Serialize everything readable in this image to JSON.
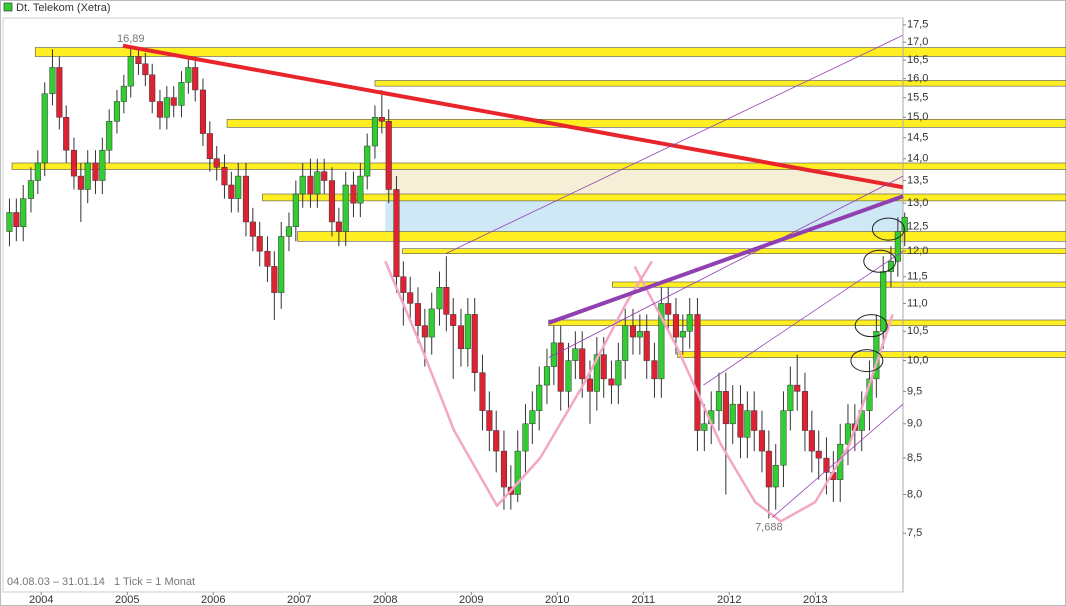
{
  "chart_data": {
    "type": "candlestick",
    "title": "Dt. Telekom (Xetra)",
    "date_range": "04.08.03 – 31.01.14",
    "tick_note": "1 Tick = 1 Monat",
    "log_scale": true,
    "up_color": "#33cc33",
    "down_color": "#dd2233",
    "x": [
      2003.63,
      2003.71,
      2003.79,
      2003.88,
      2003.96,
      2004.04,
      2004.13,
      2004.21,
      2004.29,
      2004.38,
      2004.46,
      2004.54,
      2004.63,
      2004.71,
      2004.79,
      2004.88,
      2004.96,
      2005.04,
      2005.13,
      2005.21,
      2005.29,
      2005.38,
      2005.46,
      2005.54,
      2005.63,
      2005.71,
      2005.79,
      2005.88,
      2005.96,
      2006.04,
      2006.13,
      2006.21,
      2006.29,
      2006.38,
      2006.46,
      2006.54,
      2006.63,
      2006.71,
      2006.79,
      2006.88,
      2006.96,
      2007.04,
      2007.13,
      2007.21,
      2007.29,
      2007.38,
      2007.46,
      2007.54,
      2007.63,
      2007.71,
      2007.79,
      2007.88,
      2007.96,
      2008.04,
      2008.13,
      2008.21,
      2008.29,
      2008.38,
      2008.46,
      2008.54,
      2008.63,
      2008.71,
      2008.79,
      2008.88,
      2008.96,
      2009.04,
      2009.13,
      2009.21,
      2009.29,
      2009.38,
      2009.46,
      2009.54,
      2009.63,
      2009.71,
      2009.79,
      2009.88,
      2009.96,
      2010.04,
      2010.13,
      2010.21,
      2010.29,
      2010.38,
      2010.46,
      2010.54,
      2010.63,
      2010.71,
      2010.79,
      2010.88,
      2010.96,
      2011.04,
      2011.13,
      2011.21,
      2011.29,
      2011.38,
      2011.46,
      2011.54,
      2011.63,
      2011.71,
      2011.79,
      2011.88,
      2011.96,
      2012.04,
      2012.13,
      2012.21,
      2012.29,
      2012.38,
      2012.46,
      2012.54,
      2012.63,
      2012.71,
      2012.79,
      2012.88,
      2012.96,
      2013.04,
      2013.13,
      2013.21,
      2013.29,
      2013.38,
      2013.46,
      2013.54,
      2013.63,
      2013.71,
      2013.79,
      2013.88,
      2013.96,
      2014.04
    ],
    "open": [
      12.4,
      12.8,
      12.5,
      13.1,
      13.5,
      13.9,
      15.6,
      16.3,
      15.0,
      14.2,
      13.6,
      13.3,
      13.9,
      13.5,
      14.2,
      14.9,
      15.4,
      15.8,
      16.6,
      16.4,
      16.1,
      15.4,
      15.0,
      15.5,
      15.3,
      15.9,
      16.3,
      15.7,
      14.6,
      14.0,
      13.8,
      13.4,
      13.1,
      13.6,
      12.6,
      12.3,
      12.0,
      11.7,
      11.2,
      12.3,
      12.5,
      13.2,
      13.6,
      13.2,
      13.7,
      13.5,
      12.6,
      12.4,
      13.4,
      13.0,
      13.6,
      14.3,
      15.0,
      14.9,
      13.3,
      11.5,
      11.2,
      11.0,
      10.6,
      10.4,
      10.9,
      11.3,
      10.8,
      10.6,
      10.2,
      10.8,
      9.8,
      9.2,
      8.9,
      8.6,
      8.1,
      8.0,
      8.6,
      9.0,
      9.2,
      9.6,
      9.9,
      10.3,
      9.5,
      10.0,
      10.2,
      9.7,
      9.5,
      10.1,
      9.7,
      9.6,
      10.0,
      10.6,
      10.4,
      10.5,
      10.0,
      9.7,
      11.0,
      10.8,
      10.4,
      10.5,
      10.8,
      8.9,
      9.0,
      9.2,
      9.5,
      9.0,
      9.3,
      8.8,
      9.2,
      8.9,
      8.6,
      8.1,
      8.4,
      9.2,
      9.6,
      9.5,
      8.9,
      8.6,
      8.5,
      8.3,
      8.2,
      8.7,
      9.0,
      8.9,
      9.2,
      9.7,
      10.5,
      11.6,
      11.8,
      12.4
    ],
    "high": [
      13.1,
      13.1,
      13.4,
      13.8,
      14.2,
      15.9,
      16.8,
      16.6,
      15.3,
      14.5,
      13.9,
      14.2,
      14.2,
      14.5,
      15.2,
      15.7,
      16.1,
      16.89,
      16.8,
      16.7,
      16.4,
      15.7,
      15.8,
      15.8,
      16.2,
      16.6,
      16.6,
      16.0,
      14.9,
      14.3,
      14.1,
      13.7,
      13.9,
      13.9,
      12.9,
      12.6,
      12.3,
      12.0,
      12.6,
      12.8,
      13.5,
      13.9,
      14.0,
      14.0,
      14.0,
      13.8,
      12.9,
      13.7,
      13.7,
      13.9,
      14.6,
      15.3,
      15.7,
      15.2,
      13.6,
      11.8,
      11.5,
      11.3,
      10.9,
      11.2,
      11.6,
      11.9,
      11.1,
      10.9,
      11.1,
      11.1,
      10.1,
      9.5,
      9.2,
      8.9,
      8.4,
      8.9,
      9.3,
      9.5,
      9.9,
      10.2,
      10.6,
      10.6,
      10.3,
      10.5,
      10.5,
      10.0,
      10.4,
      10.4,
      10.0,
      10.3,
      10.9,
      10.9,
      10.8,
      10.8,
      10.3,
      11.3,
      11.3,
      11.1,
      10.8,
      11.1,
      11.1,
      9.3,
      9.5,
      9.8,
      9.8,
      9.6,
      9.6,
      9.5,
      9.5,
      9.2,
      8.9,
      8.7,
      9.5,
      9.9,
      10.1,
      9.8,
      9.2,
      8.9,
      8.8,
      8.6,
      9.0,
      9.3,
      9.3,
      9.5,
      10.0,
      10.8,
      11.9,
      12.1,
      12.7,
      12.8
    ],
    "low": [
      12.1,
      12.2,
      12.2,
      12.8,
      13.2,
      13.6,
      15.3,
      14.7,
      13.9,
      13.3,
      12.6,
      13.0,
      13.2,
      13.2,
      13.9,
      14.6,
      15.1,
      15.5,
      16.1,
      15.8,
      15.1,
      14.7,
      14.7,
      15.0,
      15.0,
      15.6,
      15.4,
      14.3,
      13.7,
      13.5,
      13.1,
      12.8,
      12.8,
      12.3,
      12.0,
      11.7,
      11.4,
      10.7,
      10.9,
      12.0,
      12.2,
      12.9,
      12.9,
      12.9,
      13.2,
      12.3,
      12.1,
      12.1,
      12.7,
      12.7,
      13.3,
      14.0,
      14.6,
      13.0,
      11.2,
      10.6,
      10.7,
      10.3,
      9.9,
      10.1,
      10.6,
      10.5,
      9.7,
      9.9,
      9.9,
      9.5,
      8.9,
      8.6,
      8.3,
      7.8,
      7.8,
      7.9,
      8.3,
      8.7,
      8.9,
      9.3,
      9.6,
      9.2,
      9.2,
      9.7,
      9.4,
      9.0,
      9.2,
      9.4,
      9.3,
      9.3,
      9.7,
      10.1,
      10.1,
      9.7,
      9.4,
      9.4,
      10.5,
      10.1,
      10.1,
      10.2,
      8.6,
      8.6,
      8.7,
      8.9,
      8.0,
      8.7,
      8.5,
      8.5,
      8.6,
      8.3,
      7.688,
      7.8,
      8.1,
      8.9,
      9.2,
      8.6,
      8.3,
      8.2,
      8.0,
      7.9,
      7.9,
      8.4,
      8.6,
      8.6,
      8.9,
      9.4,
      10.2,
      11.3,
      11.5,
      12.1
    ],
    "close": [
      12.8,
      12.5,
      13.1,
      13.5,
      13.9,
      15.6,
      16.3,
      15.0,
      14.2,
      13.6,
      13.3,
      13.9,
      13.5,
      14.2,
      14.9,
      15.4,
      15.8,
      16.6,
      16.4,
      16.1,
      15.4,
      15.0,
      15.5,
      15.3,
      15.9,
      16.3,
      15.7,
      14.6,
      14.0,
      13.8,
      13.4,
      13.1,
      13.6,
      12.6,
      12.3,
      12.0,
      11.7,
      11.2,
      12.3,
      12.5,
      13.2,
      13.6,
      13.2,
      13.7,
      13.5,
      12.6,
      12.4,
      13.4,
      13.0,
      13.6,
      14.3,
      15.0,
      14.9,
      13.3,
      11.5,
      11.2,
      11.0,
      10.6,
      10.4,
      10.9,
      11.3,
      10.8,
      10.6,
      10.2,
      10.8,
      9.8,
      9.2,
      8.9,
      8.6,
      8.1,
      8.0,
      8.6,
      9.0,
      9.2,
      9.6,
      9.9,
      10.3,
      9.5,
      10.0,
      10.2,
      9.7,
      9.5,
      10.1,
      9.7,
      9.6,
      10.0,
      10.6,
      10.4,
      10.5,
      10.0,
      9.7,
      11.0,
      10.8,
      10.4,
      10.5,
      10.8,
      8.9,
      9.0,
      9.2,
      9.5,
      9.0,
      9.3,
      8.8,
      9.2,
      8.9,
      8.6,
      8.1,
      8.4,
      9.2,
      9.6,
      9.5,
      8.9,
      8.6,
      8.5,
      8.3,
      8.2,
      8.7,
      9.0,
      8.9,
      9.2,
      9.7,
      10.5,
      11.6,
      11.8,
      12.4,
      12.7
    ],
    "xlim": [
      2003.52,
      2014.02
    ],
    "ylim": [
      6.8,
      17.7
    ],
    "xticks": [
      2004,
      2005,
      2006,
      2007,
      2008,
      2009,
      2010,
      2011,
      2012,
      2013
    ],
    "yticks": [
      {
        "value": 7.5,
        "label": "7,5"
      },
      {
        "value": 8,
        "label": "8,0"
      },
      {
        "value": 8.5,
        "label": "8,5"
      },
      {
        "value": 9,
        "label": "9,0"
      },
      {
        "value": 9.5,
        "label": "9,5"
      },
      {
        "value": 10,
        "label": "10,0"
      },
      {
        "value": 10.5,
        "label": "10,5"
      },
      {
        "value": 11,
        "label": "11,0"
      },
      {
        "value": 11.5,
        "label": "11,5"
      },
      {
        "value": 12,
        "label": "12,0"
      },
      {
        "value": 12.5,
        "label": "12,5"
      },
      {
        "value": 13,
        "label": "13,0"
      },
      {
        "value": 13.5,
        "label": "13,5"
      },
      {
        "value": 14,
        "label": "14,0"
      },
      {
        "value": 14.5,
        "label": "14,5"
      },
      {
        "value": 15,
        "label": "15,0"
      },
      {
        "value": 15.5,
        "label": "15,5"
      },
      {
        "value": 16,
        "label": "16,0"
      },
      {
        "value": 16.5,
        "label": "16,5"
      },
      {
        "value": 17,
        "label": "17,0"
      },
      {
        "value": 17.5,
        "label": "17,5"
      }
    ],
    "background_zones": [
      {
        "start": 2008.0,
        "low": 13.2,
        "high": 13.75,
        "color": "#f6eed6"
      },
      {
        "start": 2008.0,
        "low": 12.4,
        "high": 13.05,
        "color": "#cfe8f6"
      }
    ],
    "zone_color": "#ffee22",
    "zones": [
      {
        "start": 2003.93,
        "low": 16.6,
        "high": 16.85
      },
      {
        "start": 2007.88,
        "low": 15.8,
        "high": 15.95
      },
      {
        "start": 2006.16,
        "low": 14.75,
        "high": 14.95
      },
      {
        "start": 2003.66,
        "low": 13.75,
        "high": 13.9
      },
      {
        "start": 2006.57,
        "low": 13.05,
        "high": 13.2
      },
      {
        "start": 2006.98,
        "low": 12.2,
        "high": 12.4
      },
      {
        "start": 2008.2,
        "low": 11.95,
        "high": 12.05
      },
      {
        "start": 2010.64,
        "low": 11.3,
        "high": 11.4
      },
      {
        "start": 2009.9,
        "low": 10.6,
        "high": 10.7
      },
      {
        "start": 2011.4,
        "low": 10.05,
        "high": 10.15
      }
    ],
    "lines": [
      {
        "x": [
          2004.95,
          2014.02
        ],
        "y": [
          16.9,
          13.35
        ],
        "color": "#e8252a",
        "width": 4
      },
      {
        "x": [
          2009.9,
          2014.02
        ],
        "y": [
          10.65,
          13.15
        ],
        "color": "#9040b0",
        "width": 4
      },
      {
        "x": [
          2008.7,
          2014.02
        ],
        "y": [
          11.95,
          17.2
        ],
        "color": "#9040b0",
        "width": 0.8
      },
      {
        "x": [
          2009.9,
          2014.02
        ],
        "y": [
          10.05,
          13.6
        ],
        "color": "#9040b0",
        "width": 0.8
      },
      {
        "x": [
          2011.7,
          2014.02
        ],
        "y": [
          9.6,
          12.0
        ],
        "color": "#9040b0",
        "width": 0.8
      },
      {
        "x": [
          2012.5,
          2014.02
        ],
        "y": [
          7.7,
          9.3
        ],
        "color": "#9040b0",
        "width": 0.8
      }
    ],
    "curve_color": "#f4a6c4",
    "curves": [
      {
        "x": [
          2008.0,
          2008.4,
          2008.8,
          2009.3,
          2009.8,
          2010.3,
          2010.8,
          2011.1
        ],
        "y": [
          11.8,
          10.3,
          8.9,
          7.85,
          8.5,
          9.6,
          11.0,
          11.8
        ]
      },
      {
        "x": [
          2010.9,
          2011.4,
          2011.9,
          2012.3,
          2012.6,
          2013.0,
          2013.4,
          2013.9
        ],
        "y": [
          11.7,
          10.2,
          8.7,
          7.9,
          7.65,
          7.9,
          8.7,
          10.8
        ]
      }
    ],
    "ellipses": [
      {
        "x": 2013.6,
        "y": 10.0
      },
      {
        "x": 2013.65,
        "y": 10.6
      },
      {
        "x": 2013.75,
        "y": 11.8
      },
      {
        "x": 2013.85,
        "y": 12.45
      }
    ],
    "annotations": [
      {
        "label": "16,89",
        "x": 2005.04,
        "value": 16.89
      },
      {
        "label": "7,688",
        "x": 2012.46,
        "value": 7.688
      }
    ]
  }
}
